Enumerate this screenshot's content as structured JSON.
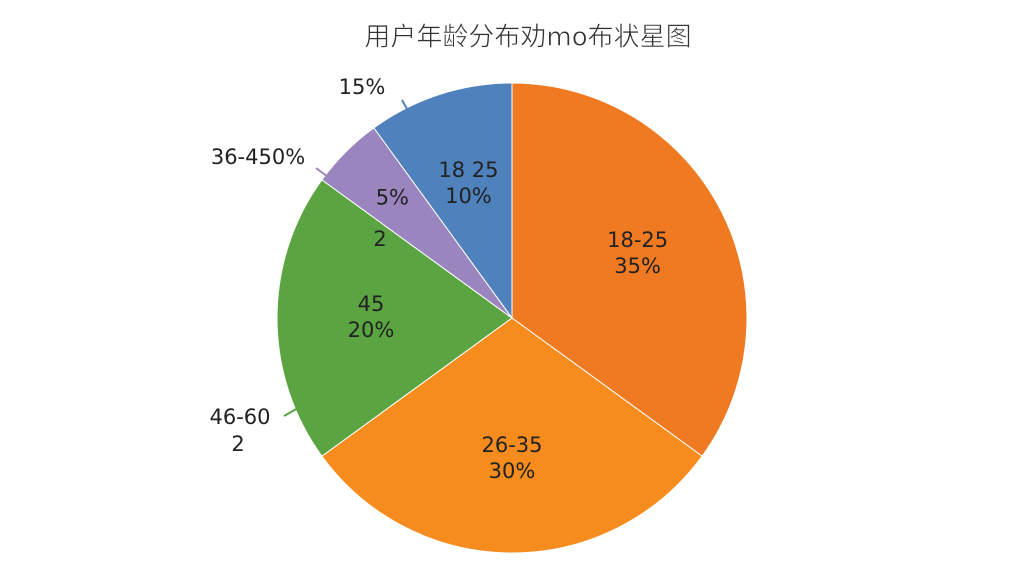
{
  "chart_data": {
    "type": "pie",
    "title": "用户年龄分布劝mo布状星图",
    "categories": [
      "18-25",
      "26-35",
      "45",
      null,
      "18 25"
    ],
    "values": [
      35,
      30,
      20,
      5,
      10
    ],
    "value_labels": [
      "35%",
      "30%",
      "20%",
      "5%",
      "10%"
    ],
    "colors": [
      "#f07a22",
      "#f68c1e",
      "#5aa541",
      "#9b85bf",
      "#4f81bd"
    ],
    "annotations": [
      "15%",
      "36-450%",
      "46-60",
      "2",
      "2"
    ]
  }
}
